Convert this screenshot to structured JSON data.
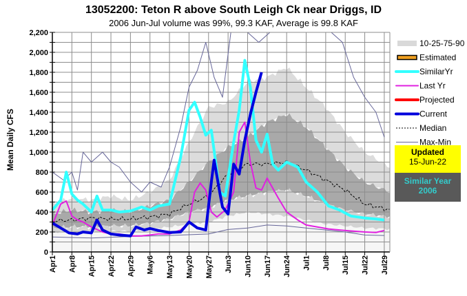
{
  "chart_data": {
    "type": "area",
    "title": "13052200: Teton R above South Leigh Ck near Driggs, ID",
    "subtitle": "2006 Jun-Jul volume was 99%, 99.3 KAF, Average is 99.8 KAF",
    "ylabel": "Mean Daily CFS",
    "xlabel": "",
    "ylim": [
      0,
      2200
    ],
    "yticks": [
      "0",
      "200",
      "400",
      "600",
      "800",
      "1,000",
      "1,200",
      "1,400",
      "1,600",
      "1,800",
      "2,000",
      "2,200"
    ],
    "xticks": [
      "Apr1",
      "Apr8",
      "Apr15",
      "Apr22",
      "Apr29",
      "May6",
      "May13",
      "May20",
      "May27",
      "Jun3",
      "Jun10",
      "Jun17",
      "Jun24",
      "Jul1",
      "Jul8",
      "Jul15",
      "Jul22",
      "Jul29"
    ],
    "x_unit": "day index from Apr1",
    "grid": true,
    "legend_position": "right",
    "legend": [
      "10-25-75-90",
      "Estimated",
      "SimilarYr",
      "Last Yr",
      "Projected",
      "Current",
      "Median",
      "Max-Min"
    ],
    "series": [
      {
        "name": "p90",
        "days": [
          0,
          7,
          14,
          21,
          28,
          35,
          42,
          49,
          56,
          63,
          70,
          77,
          84,
          91,
          98,
          105,
          112,
          121
        ],
        "values": [
          480,
          540,
          520,
          560,
          520,
          600,
          720,
          1100,
          1450,
          1500,
          1700,
          1750,
          1850,
          1650,
          1450,
          1200,
          1000,
          850
        ]
      },
      {
        "name": "p75",
        "days": [
          0,
          7,
          14,
          21,
          28,
          35,
          42,
          49,
          56,
          63,
          70,
          77,
          84,
          91,
          98,
          105,
          112,
          121
        ],
        "values": [
          380,
          420,
          400,
          420,
          400,
          460,
          520,
          700,
          900,
          1050,
          1150,
          1300,
          1380,
          1250,
          1050,
          850,
          700,
          600
        ]
      },
      {
        "name": "p25",
        "days": [
          0,
          7,
          14,
          21,
          28,
          35,
          42,
          49,
          56,
          63,
          70,
          77,
          84,
          91,
          98,
          105,
          112,
          121
        ],
        "values": [
          240,
          250,
          250,
          260,
          260,
          290,
          330,
          400,
          440,
          520,
          560,
          600,
          620,
          560,
          480,
          420,
          380,
          350
        ]
      },
      {
        "name": "p10",
        "days": [
          0,
          7,
          14,
          21,
          28,
          35,
          42,
          49,
          56,
          63,
          70,
          77,
          84,
          91,
          98,
          105,
          112,
          121
        ],
        "values": [
          200,
          200,
          200,
          210,
          210,
          230,
          250,
          280,
          300,
          360,
          400,
          380,
          360,
          320,
          280,
          260,
          240,
          230
        ]
      },
      {
        "name": "Median",
        "days": [
          0,
          7,
          14,
          21,
          28,
          35,
          42,
          49,
          56,
          63,
          70,
          77,
          84,
          91,
          98,
          105,
          112,
          121
        ],
        "values": [
          310,
          320,
          340,
          330,
          330,
          350,
          380,
          480,
          560,
          780,
          880,
          880,
          900,
          820,
          720,
          620,
          480,
          420
        ]
      },
      {
        "name": "Max",
        "days": [
          0,
          4,
          7,
          9,
          11,
          14,
          18,
          21,
          24,
          28,
          32,
          35,
          39,
          42,
          46,
          49,
          52,
          55,
          58,
          61,
          64,
          68,
          70,
          74,
          78,
          84,
          88,
          92,
          96,
          100,
          104,
          108,
          112,
          116,
          119
        ],
        "values": [
          800,
          720,
          800,
          620,
          1000,
          900,
          1000,
          900,
          850,
          700,
          600,
          700,
          650,
          850,
          1250,
          1650,
          1820,
          2100,
          1750,
          1550,
          2300,
          2300,
          2200,
          2100,
          2300,
          2200,
          2400,
          2300,
          2300,
          2200,
          2100,
          1750,
          1550,
          1400,
          1150
        ]
      },
      {
        "name": "Min",
        "days": [
          0,
          14,
          28,
          42,
          56,
          63,
          70,
          77,
          84,
          91,
          98,
          105,
          112,
          119
        ],
        "values": [
          150,
          140,
          155,
          165,
          180,
          225,
          240,
          270,
          260,
          240,
          220,
          200,
          170,
          165
        ]
      },
      {
        "name": "SimilarYr",
        "days": [
          0,
          3,
          5,
          7,
          9,
          11,
          14,
          16,
          18,
          21,
          24,
          28,
          32,
          35,
          38,
          42,
          46,
          49,
          51,
          53,
          55,
          57,
          60,
          62,
          65,
          67,
          69,
          71,
          73,
          75,
          77,
          79,
          81,
          84,
          88,
          91,
          95,
          99,
          103,
          107,
          112,
          116,
          119
        ],
        "values": [
          420,
          520,
          800,
          580,
          520,
          480,
          400,
          560,
          420,
          420,
          400,
          410,
          450,
          420,
          460,
          480,
          950,
          1420,
          1500,
          1350,
          1170,
          1220,
          600,
          560,
          1100,
          1420,
          1920,
          1650,
          1120,
          1000,
          1180,
          880,
          820,
          900,
          850,
          700,
          600,
          460,
          420,
          360,
          340,
          330,
          320
        ]
      },
      {
        "name": "Last Yr",
        "days": [
          0,
          3,
          5,
          7,
          9,
          11,
          14,
          18,
          21,
          24,
          28,
          32,
          35,
          38,
          42,
          46,
          49,
          51,
          53,
          55,
          57,
          59,
          62,
          65,
          67,
          69,
          71,
          73,
          75,
          77,
          79,
          81,
          84,
          88,
          91,
          95,
          99,
          103,
          107,
          112,
          116,
          119
        ],
        "values": [
          270,
          480,
          510,
          360,
          320,
          300,
          250,
          200,
          180,
          180,
          160,
          160,
          170,
          180,
          180,
          220,
          300,
          600,
          690,
          620,
          400,
          350,
          420,
          600,
          1200,
          1300,
          900,
          640,
          620,
          740,
          640,
          540,
          400,
          320,
          270,
          250,
          230,
          220,
          210,
          200,
          195,
          215
        ]
      },
      {
        "name": "Current",
        "days": [
          0,
          3,
          6,
          9,
          11,
          14,
          16,
          18,
          21,
          24,
          28,
          30,
          33,
          35,
          38,
          42,
          46,
          49,
          52,
          55,
          57,
          58,
          60,
          61,
          63,
          65,
          67,
          69,
          71,
          73,
          75
        ],
        "values": [
          290,
          240,
          190,
          180,
          200,
          190,
          320,
          220,
          180,
          170,
          160,
          250,
          220,
          235,
          215,
          195,
          200,
          300,
          240,
          220,
          700,
          920,
          600,
          450,
          380,
          880,
          780,
          1120,
          1380,
          1600,
          1800
        ]
      }
    ]
  },
  "legend_items": [
    {
      "label": "10-25-75-90",
      "icon": "band-swatch",
      "color": "#d9d9d9"
    },
    {
      "label": "Estimated",
      "icon": "orange-gradient-bar",
      "color": "#f0a020"
    },
    {
      "label": "SimilarYr",
      "icon": "line",
      "color": "#33ffff"
    },
    {
      "label": "Last Yr",
      "icon": "line",
      "color": "#e020e0"
    },
    {
      "label": "Projected",
      "icon": "line",
      "color": "#ff0000"
    },
    {
      "label": "Current",
      "icon": "line",
      "color": "#0000dd"
    },
    {
      "label": "Median",
      "icon": "dashed-line",
      "color": "#000000"
    },
    {
      "label": "Max-Min",
      "icon": "thin-line",
      "color": "#666699"
    }
  ],
  "info": {
    "updated_label": "Updated",
    "updated_date": "15-Jun-22",
    "similar_label": "Similar Year",
    "similar_year": "2006"
  }
}
